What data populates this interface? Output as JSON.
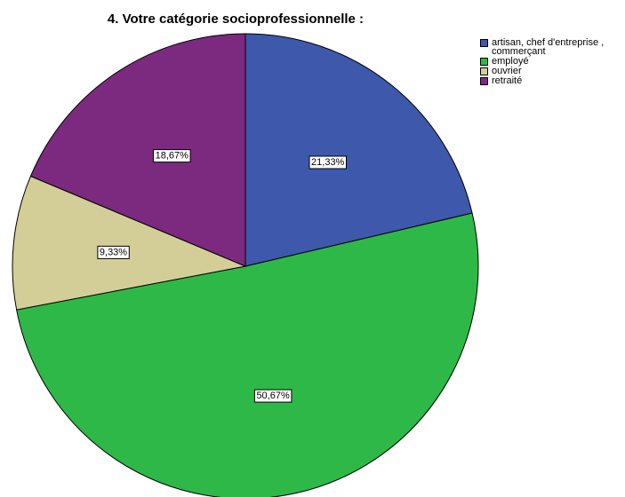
{
  "chart_data": {
    "type": "pie",
    "title": "4. Votre catégorie socioprofessionnelle :",
    "legend_position": "top-right",
    "slices": [
      {
        "name": "artisan, chef d'entreprise , commerçant",
        "value": 21.33,
        "label": "21,33%",
        "color": "#3e58ac"
      },
      {
        "name": "employé",
        "value": 50.67,
        "label": "50,67%",
        "color": "#2eb848"
      },
      {
        "name": "ouvrier",
        "value": 9.33,
        "label": "9,33%",
        "color": "#d3ce97"
      },
      {
        "name": "retraité",
        "value": 18.67,
        "label": "18,67%",
        "color": "#7b2a7f"
      }
    ]
  }
}
